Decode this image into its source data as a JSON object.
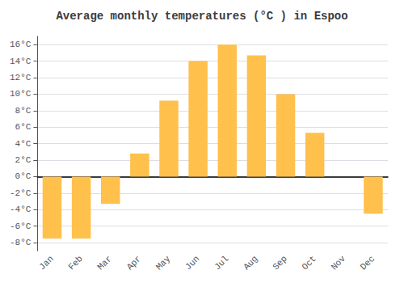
{
  "chart_data": {
    "type": "bar",
    "title": "Average monthly temperatures (°C ) in Espoo",
    "categories": [
      "Jan",
      "Feb",
      "Mar",
      "Apr",
      "May",
      "Jun",
      "Jul",
      "Aug",
      "Sep",
      "Oct",
      "Nov",
      "Dec"
    ],
    "values": [
      -7.5,
      -7.5,
      -3.3,
      2.8,
      9.2,
      14.0,
      16.0,
      14.7,
      10.0,
      5.3,
      0.0,
      -4.5
    ],
    "color": "#FFC04C",
    "ylim": [
      -9,
      17
    ],
    "yticks": [
      {
        "value": -8,
        "label": "-8°C"
      },
      {
        "value": -6,
        "label": "-6°C"
      },
      {
        "value": -4,
        "label": "-4°C"
      },
      {
        "value": -2,
        "label": "-2°C"
      },
      {
        "value": 0,
        "label": "0°C"
      },
      {
        "value": 2,
        "label": "2°C"
      },
      {
        "value": 4,
        "label": "4°C"
      },
      {
        "value": 6,
        "label": "6°C"
      },
      {
        "value": 8,
        "label": "8°C"
      },
      {
        "value": 10,
        "label": "10°C"
      },
      {
        "value": 12,
        "label": "12°C"
      },
      {
        "value": 14,
        "label": "14°C"
      },
      {
        "value": 16,
        "label": "16°C"
      }
    ],
    "grid": true
  }
}
